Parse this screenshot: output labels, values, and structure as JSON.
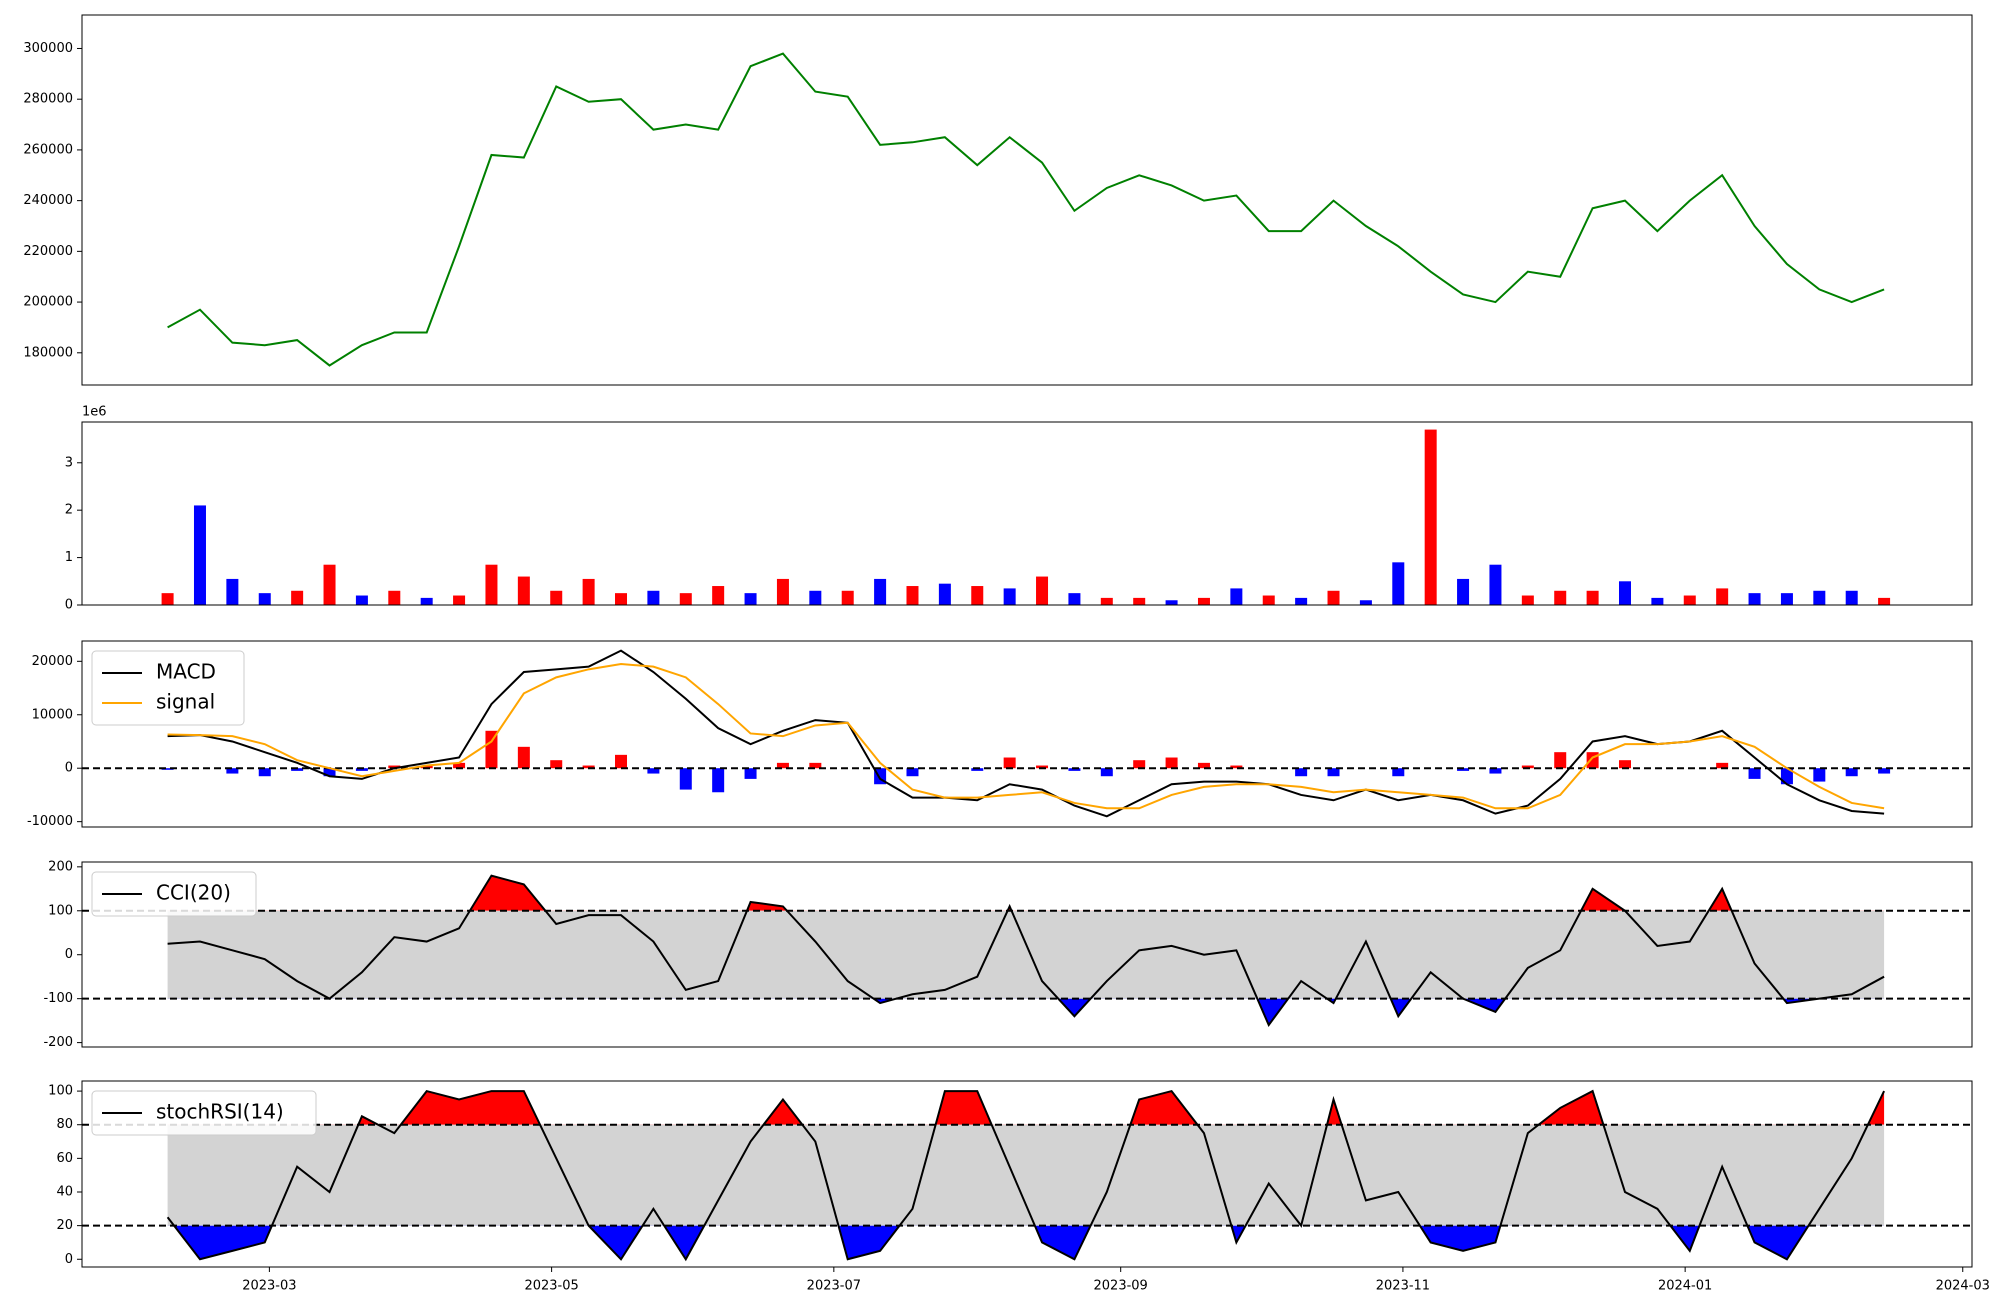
{
  "chart_data": [
    {
      "type": "line",
      "x": [
        37,
        44,
        51,
        58,
        65,
        72,
        79,
        86,
        93,
        100,
        107,
        114,
        121,
        128,
        135,
        142,
        149,
        156,
        163,
        170,
        177,
        184,
        191,
        198,
        205,
        212,
        219,
        226,
        233,
        240,
        247,
        254,
        261,
        268,
        275,
        282,
        289,
        296,
        303,
        310,
        317,
        324,
        331,
        338,
        345,
        352,
        359,
        366,
        373,
        380,
        387,
        394,
        401,
        408
      ],
      "xlim": [
        18.5,
        427
      ],
      "ylim": [
        167300,
        313200
      ],
      "yticks": [
        180000,
        200000,
        220000,
        240000,
        260000,
        280000,
        300000
      ],
      "series": [
        {
          "color": "#008000",
          "values": [
            190000,
            197000,
            184000,
            183000,
            185000,
            175000,
            183000,
            188000,
            188000,
            222000,
            258000,
            257000,
            285000,
            279000,
            280000,
            268000,
            270000,
            268000,
            293000,
            298000,
            283000,
            281000,
            262000,
            263000,
            265000,
            254000,
            265000,
            255000,
            236000,
            245000,
            250000,
            246000,
            240000,
            242000,
            228000,
            228000,
            240000,
            230000,
            222000,
            212000,
            203000,
            200000,
            212000,
            210000,
            237000,
            240000,
            228000,
            240000,
            250000,
            230000,
            215000,
            205000,
            200000,
            205000
          ]
        }
      ]
    },
    {
      "type": "bar",
      "x": [
        37,
        44,
        51,
        58,
        65,
        72,
        79,
        86,
        93,
        100,
        107,
        114,
        121,
        128,
        135,
        142,
        149,
        156,
        163,
        170,
        177,
        184,
        191,
        198,
        205,
        212,
        219,
        226,
        233,
        240,
        247,
        254,
        261,
        268,
        275,
        282,
        289,
        296,
        303,
        310,
        317,
        324,
        331,
        338,
        345,
        352,
        359,
        366,
        373,
        380,
        387,
        394,
        401,
        408
      ],
      "xlim": [
        18.5,
        427
      ],
      "ylim": [
        0,
        3.86
      ],
      "yticks": [
        0,
        1,
        2,
        3
      ],
      "offset_text": "1e6",
      "values": [
        0.25,
        2.1,
        0.55,
        0.25,
        0.3,
        0.85,
        0.2,
        0.3,
        0.15,
        0.2,
        0.85,
        0.6,
        0.3,
        0.55,
        0.25,
        0.3,
        0.25,
        0.4,
        0.25,
        0.55,
        0.3,
        0.3,
        0.55,
        0.4,
        0.45,
        0.4,
        0.35,
        0.6,
        0.25,
        0.15,
        0.15,
        0.1,
        0.15,
        0.35,
        0.2,
        0.15,
        0.3,
        0.1,
        0.9,
        3.7,
        0.55,
        0.85,
        0.2,
        0.3,
        0.3,
        0.5,
        0.15,
        0.2,
        0.35,
        0.25,
        0.25,
        0.3,
        0.3,
        0.15
      ],
      "colors": [
        "red",
        "blue",
        "blue",
        "blue",
        "red",
        "red",
        "blue",
        "red",
        "blue",
        "red",
        "red",
        "red",
        "red",
        "red",
        "red",
        "blue",
        "red",
        "red",
        "blue",
        "red",
        "blue",
        "red",
        "blue",
        "red",
        "blue",
        "red",
        "blue",
        "red",
        "blue",
        "red",
        "red",
        "blue",
        "red",
        "blue",
        "red",
        "blue",
        "red",
        "blue",
        "blue",
        "red",
        "blue",
        "blue",
        "red",
        "red",
        "red",
        "blue",
        "blue",
        "red",
        "red",
        "blue",
        "blue",
        "blue",
        "blue",
        "red"
      ]
    },
    {
      "type": "macd",
      "x": [
        37,
        44,
        51,
        58,
        65,
        72,
        79,
        86,
        93,
        100,
        107,
        114,
        121,
        128,
        135,
        142,
        149,
        156,
        163,
        170,
        177,
        184,
        191,
        198,
        205,
        212,
        219,
        226,
        233,
        240,
        247,
        254,
        261,
        268,
        275,
        282,
        289,
        296,
        303,
        310,
        317,
        324,
        331,
        338,
        345,
        352,
        359,
        366,
        373,
        380,
        387,
        394,
        401,
        408
      ],
      "xlim": [
        18.5,
        427
      ],
      "ylim": [
        -11000,
        23800
      ],
      "yticks": [
        -10000,
        0,
        10000,
        20000
      ],
      "hlines": [
        0
      ],
      "legend": "upper left",
      "series": [
        {
          "name": "MACD",
          "color": "#000000",
          "values": [
            6000,
            6200,
            5000,
            3000,
            1000,
            -1500,
            -2000,
            0,
            1000,
            2000,
            12000,
            18000,
            18500,
            19000,
            22000,
            18000,
            13000,
            7500,
            4500,
            7000,
            9000,
            8500,
            -2000,
            -5500,
            -5500,
            -6000,
            -3000,
            -4000,
            -7000,
            -9000,
            -6000,
            -3000,
            -2500,
            -2500,
            -3000,
            -5000,
            -6000,
            -4000,
            -6000,
            -5000,
            -6000,
            -8500,
            -7000,
            -2000,
            5000,
            6000,
            4500,
            5000,
            7000,
            2000,
            -3000,
            -6000,
            -8000,
            -8500
          ]
        },
        {
          "name": "signal",
          "color": "#ffa500",
          "values": [
            6300,
            6200,
            6000,
            4500,
            1500,
            0,
            -1500,
            -500,
            500,
            1000,
            5000,
            14000,
            17000,
            18500,
            19500,
            19000,
            17000,
            12000,
            6500,
            6000,
            8000,
            8500,
            1000,
            -4000,
            -5500,
            -5500,
            -5000,
            -4500,
            -6500,
            -7500,
            -7500,
            -5000,
            -3500,
            -3000,
            -3000,
            -3500,
            -4500,
            -4000,
            -4500,
            -5000,
            -5500,
            -7500,
            -7500,
            -5000,
            2000,
            4500,
            4500,
            5000,
            6000,
            4000,
            0,
            -3500,
            -6500,
            -7500
          ]
        }
      ],
      "bars": {
        "pos_color": "red",
        "neg_color": "blue",
        "values": [
          -300,
          0,
          -1000,
          -1500,
          -500,
          -1500,
          -500,
          500,
          500,
          1000,
          7000,
          4000,
          1500,
          500,
          2500,
          -1000,
          -4000,
          -4500,
          -2000,
          1000,
          1000,
          0,
          -3000,
          -1500,
          0,
          -500,
          2000,
          500,
          -500,
          -1500,
          1500,
          2000,
          1000,
          500,
          0,
          -1500,
          -1500,
          0,
          -1500,
          0,
          -500,
          -1000,
          500,
          3000,
          3000,
          1500,
          0,
          0,
          1000,
          -2000,
          -3000,
          -2500,
          -1500,
          -1000
        ]
      }
    },
    {
      "type": "band",
      "x": [
        37,
        44,
        51,
        58,
        65,
        72,
        79,
        86,
        93,
        100,
        107,
        114,
        121,
        128,
        135,
        142,
        149,
        156,
        163,
        170,
        177,
        184,
        191,
        198,
        205,
        212,
        219,
        226,
        233,
        240,
        247,
        254,
        261,
        268,
        275,
        282,
        289,
        296,
        303,
        310,
        317,
        324,
        331,
        338,
        345,
        352,
        359,
        366,
        373,
        380,
        387,
        394,
        401,
        408
      ],
      "xlim": [
        18.5,
        427
      ],
      "ylim": [
        -210,
        211
      ],
      "yticks": [
        -200,
        -100,
        0,
        100,
        200
      ],
      "hlines": [
        -100,
        100
      ],
      "legend": "upper left",
      "band_color": "#d3d3d3",
      "upper_fill": "red",
      "lower_fill": "blue",
      "series": [
        {
          "name": "CCI(20)",
          "color": "#000000",
          "values": [
            25,
            30,
            10,
            -10,
            -60,
            -100,
            -40,
            40,
            30,
            60,
            180,
            160,
            70,
            90,
            90,
            30,
            -80,
            -60,
            120,
            110,
            30,
            -60,
            -110,
            -90,
            -80,
            -50,
            110,
            -60,
            -140,
            -60,
            10,
            20,
            0,
            10,
            -160,
            -60,
            -110,
            30,
            -140,
            -40,
            -100,
            -130,
            -30,
            10,
            150,
            100,
            20,
            30,
            150,
            -20,
            -110,
            -100,
            -90,
            -50
          ]
        }
      ]
    },
    {
      "type": "band",
      "x": [
        37,
        44,
        51,
        58,
        65,
        72,
        79,
        86,
        93,
        100,
        107,
        114,
        121,
        128,
        135,
        142,
        149,
        156,
        163,
        170,
        177,
        184,
        191,
        198,
        205,
        212,
        219,
        226,
        233,
        240,
        247,
        254,
        261,
        268,
        275,
        282,
        289,
        296,
        303,
        310,
        317,
        324,
        331,
        338,
        345,
        352,
        359,
        366,
        373,
        380,
        387,
        394,
        401,
        408
      ],
      "xlim": [
        18.5,
        427
      ],
      "ylim": [
        -4.6,
        106
      ],
      "yticks": [
        0,
        20,
        40,
        60,
        80,
        100
      ],
      "hlines": [
        20,
        80
      ],
      "legend": "upper left",
      "band_color": "#d3d3d3",
      "upper_fill": "red",
      "lower_fill": "blue",
      "xticks": [
        {
          "value": 59,
          "label": "2023-03"
        },
        {
          "value": 120,
          "label": "2023-05"
        },
        {
          "value": 181,
          "label": "2023-07"
        },
        {
          "value": 243,
          "label": "2023-09"
        },
        {
          "value": 304,
          "label": "2023-11"
        },
        {
          "value": 365,
          "label": "2024-01"
        },
        {
          "value": 425,
          "label": "2024-03"
        }
      ],
      "series": [
        {
          "name": "stochRSI(14)",
          "color": "#000000",
          "values": [
            25,
            0,
            5,
            10,
            55,
            40,
            85,
            75,
            100,
            95,
            100,
            100,
            60,
            20,
            0,
            30,
            0,
            35,
            70,
            95,
            70,
            0,
            5,
            30,
            100,
            100,
            55,
            10,
            0,
            40,
            95,
            100,
            75,
            10,
            45,
            20,
            95,
            35,
            40,
            10,
            5,
            10,
            75,
            90,
            100,
            40,
            30,
            5,
            55,
            10,
            0,
            30,
            60,
            100
          ]
        }
      ]
    }
  ]
}
